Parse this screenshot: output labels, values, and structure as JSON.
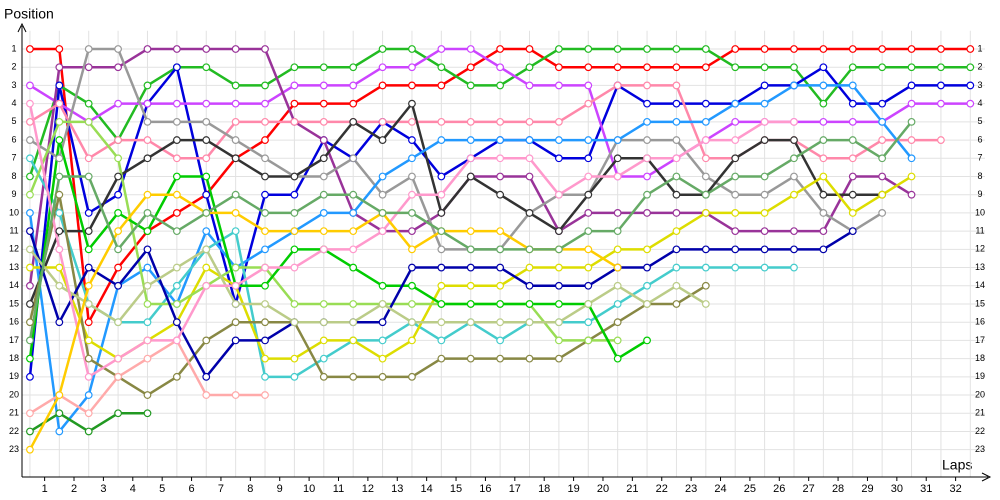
{
  "chart_data": {
    "type": "line",
    "y_label": "Position",
    "x_label": "Laps",
    "x": [
      0,
      1,
      2,
      3,
      4,
      5,
      6,
      7,
      8,
      9,
      10,
      11,
      12,
      13,
      14,
      15,
      16,
      17,
      18,
      19,
      20,
      21,
      22,
      23,
      24,
      25,
      26,
      27,
      28,
      29,
      30,
      31,
      32
    ],
    "xlim": [
      -0.27,
      32.5
    ],
    "xticks": [
      {
        "value": 0.5,
        "label": "1"
      },
      {
        "value": 1.5,
        "label": "2"
      },
      {
        "value": 2.5,
        "label": "3"
      },
      {
        "value": 3.5,
        "label": "4"
      },
      {
        "value": 4.5,
        "label": "5"
      },
      {
        "value": 5.5,
        "label": "6"
      },
      {
        "value": 6.5,
        "label": "7"
      },
      {
        "value": 7.5,
        "label": "8"
      },
      {
        "value": 8.5,
        "label": "9"
      },
      {
        "value": 9.5,
        "label": "10"
      },
      {
        "value": 10.5,
        "label": "11"
      },
      {
        "value": 11.5,
        "label": "12"
      },
      {
        "value": 12.5,
        "label": "13"
      },
      {
        "value": 13.5,
        "label": "14"
      },
      {
        "value": 14.5,
        "label": "15"
      },
      {
        "value": 15.5,
        "label": "16"
      },
      {
        "value": 16.5,
        "label": "17"
      },
      {
        "value": 17.5,
        "label": "18"
      },
      {
        "value": 18.5,
        "label": "19"
      },
      {
        "value": 19.5,
        "label": "20"
      },
      {
        "value": 20.5,
        "label": "21"
      },
      {
        "value": 21.5,
        "label": "22"
      },
      {
        "value": 22.5,
        "label": "23"
      },
      {
        "value": 23.5,
        "label": "24"
      },
      {
        "value": 24.5,
        "label": "25"
      },
      {
        "value": 25.5,
        "label": "26"
      },
      {
        "value": 26.5,
        "label": "27"
      },
      {
        "value": 27.5,
        "label": "28"
      },
      {
        "value": 28.5,
        "label": "29"
      },
      {
        "value": 29.5,
        "label": "30"
      },
      {
        "value": 30.5,
        "label": "31"
      },
      {
        "value": 31.5,
        "label": "32"
      }
    ],
    "ylim": [
      24.5,
      0
    ],
    "yticks": [
      1,
      2,
      3,
      4,
      5,
      6,
      7,
      8,
      9,
      10,
      11,
      12,
      13,
      14,
      15,
      16,
      17,
      18,
      19,
      20,
      21,
      22,
      23
    ],
    "grid": true,
    "series": [
      {
        "color": "#ff0000",
        "values": [
          1,
          1,
          16,
          13,
          11,
          10,
          9,
          7,
          6,
          4,
          4,
          4,
          3,
          3,
          3,
          2,
          1,
          1,
          2,
          2,
          2,
          2,
          2,
          2,
          1,
          1,
          1,
          1,
          1,
          1,
          1,
          1,
          1
        ]
      },
      {
        "color": "#22bb22",
        "values": [
          8,
          3,
          4,
          6,
          3,
          2,
          2,
          3,
          3,
          2,
          2,
          2,
          1,
          1,
          2,
          3,
          3,
          2,
          1,
          1,
          1,
          1,
          1,
          1,
          2,
          2,
          2,
          4,
          2,
          2,
          2,
          2,
          2
        ]
      },
      {
        "color": "#0000dd",
        "values": [
          19,
          3,
          10,
          9,
          4,
          2,
          9,
          15,
          9,
          9,
          6,
          7,
          5,
          6,
          8,
          7,
          6,
          6,
          7,
          7,
          3,
          4,
          4,
          4,
          4,
          3,
          3,
          2,
          4,
          4,
          3,
          3,
          3
        ]
      },
      {
        "color": "#cc44ff",
        "values": [
          3,
          4,
          5,
          4,
          4,
          4,
          4,
          4,
          4,
          3,
          3,
          3,
          2,
          2,
          1,
          1,
          2,
          3,
          3,
          3,
          8,
          8,
          7,
          6,
          5,
          5,
          5,
          5,
          5,
          5,
          4,
          4,
          4
        ]
      },
      {
        "color": "#993399",
        "values": [
          14,
          2,
          2,
          2,
          1,
          1,
          1,
          1,
          1,
          5,
          6,
          10,
          11,
          11,
          10,
          8,
          8,
          8,
          11,
          10,
          10,
          10,
          10,
          10,
          11,
          11,
          11,
          11,
          8,
          8,
          9,
          null,
          null
        ]
      },
      {
        "color": "#ff88aa",
        "values": [
          5,
          4,
          7,
          6,
          6,
          7,
          7,
          5,
          5,
          5,
          5,
          5,
          5,
          5,
          5,
          5,
          5,
          5,
          5,
          4,
          3,
          3,
          3,
          7,
          7,
          6,
          6,
          7,
          7,
          6,
          6,
          6,
          null
        ]
      },
      {
        "color": "#999999",
        "values": [
          6,
          7,
          1,
          1,
          5,
          5,
          5,
          6,
          7,
          8,
          8,
          7,
          9,
          8,
          12,
          12,
          12,
          10,
          9,
          9,
          6,
          6,
          6,
          8,
          9,
          9,
          8,
          10,
          11,
          10,
          null,
          null,
          null
        ]
      },
      {
        "color": "#333333",
        "values": [
          15,
          11,
          11,
          8,
          7,
          6,
          6,
          7,
          8,
          8,
          7,
          5,
          6,
          4,
          10,
          8,
          9,
          10,
          11,
          9,
          7,
          7,
          9,
          9,
          7,
          6,
          6,
          9,
          9,
          9,
          null,
          null,
          null
        ]
      },
      {
        "color": "#2299ff",
        "values": [
          10,
          22,
          20,
          14,
          13,
          15,
          11,
          13,
          12,
          11,
          10,
          10,
          8,
          7,
          6,
          6,
          6,
          6,
          6,
          6,
          6,
          5,
          5,
          5,
          4,
          4,
          3,
          3,
          3,
          5,
          7,
          null,
          null
        ]
      },
      {
        "color": "#44cccc",
        "values": [
          7,
          10,
          15,
          16,
          16,
          14,
          12,
          11,
          19,
          19,
          18,
          17,
          17,
          16,
          17,
          16,
          17,
          16,
          16,
          16,
          15,
          14,
          13,
          13,
          13,
          13,
          13,
          null,
          null,
          null,
          null,
          null,
          null
        ]
      },
      {
        "color": "#dddd00",
        "values": [
          13,
          13,
          17,
          18,
          17,
          16,
          13,
          14,
          18,
          18,
          17,
          17,
          18,
          17,
          14,
          14,
          14,
          13,
          13,
          13,
          12,
          12,
          11,
          10,
          10,
          10,
          9,
          8,
          10,
          9,
          8,
          null,
          null
        ]
      },
      {
        "color": "#888844",
        "values": [
          16,
          9,
          18,
          19,
          20,
          19,
          17,
          16,
          16,
          16,
          19,
          19,
          19,
          19,
          18,
          18,
          18,
          18,
          18,
          17,
          16,
          15,
          15,
          14,
          null,
          null,
          null,
          null,
          null,
          null,
          null,
          null,
          null
        ]
      },
      {
        "color": "#99dd55",
        "values": [
          9,
          5,
          5,
          7,
          15,
          15,
          14,
          13,
          13,
          15,
          15,
          15,
          15,
          15,
          15,
          15,
          15,
          15,
          17,
          17,
          17,
          null,
          null,
          null,
          null,
          null,
          null,
          null,
          null,
          null,
          null,
          null,
          null
        ]
      },
      {
        "color": "#229922",
        "values": [
          22,
          21,
          22,
          21,
          21,
          null,
          null,
          null,
          null,
          null,
          null,
          null,
          null,
          null,
          null,
          null,
          null,
          null,
          null,
          null,
          null,
          null,
          null,
          null,
          null,
          null,
          null,
          null,
          null,
          null,
          null,
          null,
          null
        ]
      },
      {
        "color": "#00cc00",
        "values": [
          18,
          6,
          12,
          10,
          11,
          8,
          8,
          14,
          14,
          12,
          12,
          13,
          14,
          14,
          15,
          15,
          15,
          15,
          15,
          15,
          18,
          17,
          null,
          null,
          null,
          null,
          null,
          null,
          null,
          null,
          null,
          null,
          null
        ]
      },
      {
        "color": "#0000aa",
        "values": [
          11,
          16,
          13,
          14,
          12,
          16,
          19,
          17,
          17,
          16,
          16,
          16,
          16,
          13,
          13,
          13,
          13,
          14,
          14,
          14,
          13,
          13,
          12,
          12,
          12,
          12,
          12,
          12,
          11,
          null,
          null,
          null,
          null
        ]
      },
      {
        "color": "#bbcc88",
        "values": [
          12,
          14,
          15,
          16,
          14,
          13,
          12,
          15,
          15,
          16,
          16,
          16,
          15,
          16,
          16,
          16,
          16,
          16,
          16,
          15,
          14,
          15,
          14,
          15,
          null,
          null,
          null,
          null,
          null,
          null,
          null,
          null,
          null
        ]
      },
      {
        "color": "#ffaaaa",
        "values": [
          21,
          20,
          21,
          19,
          18,
          17,
          20,
          20,
          20,
          null,
          null,
          null,
          null,
          null,
          null,
          null,
          null,
          null,
          null,
          null,
          null,
          null,
          null,
          null,
          null,
          null,
          null,
          null,
          null,
          null,
          null,
          null,
          null
        ]
      },
      {
        "color": "#ff99cc",
        "values": [
          4,
          12,
          19,
          18,
          17,
          17,
          14,
          14,
          13,
          13,
          12,
          12,
          11,
          9,
          9,
          7,
          7,
          7,
          9,
          8,
          8,
          7,
          7,
          6,
          6,
          5,
          5,
          null,
          null,
          null,
          null,
          null,
          null
        ]
      },
      {
        "color": "#ffcc00",
        "values": [
          23,
          20,
          14,
          11,
          9,
          9,
          10,
          10,
          11,
          11,
          11,
          11,
          10,
          12,
          11,
          11,
          11,
          12,
          12,
          12,
          13,
          null,
          null,
          null,
          null,
          null,
          null,
          null,
          null,
          null,
          null,
          null,
          null
        ]
      },
      {
        "color": "#66aa66",
        "values": [
          17,
          8,
          8,
          12,
          10,
          11,
          10,
          9,
          10,
          10,
          9,
          9,
          10,
          10,
          11,
          12,
          12,
          12,
          12,
          11,
          11,
          9,
          8,
          9,
          8,
          8,
          7,
          6,
          6,
          7,
          5,
          null,
          null
        ]
      }
    ]
  }
}
